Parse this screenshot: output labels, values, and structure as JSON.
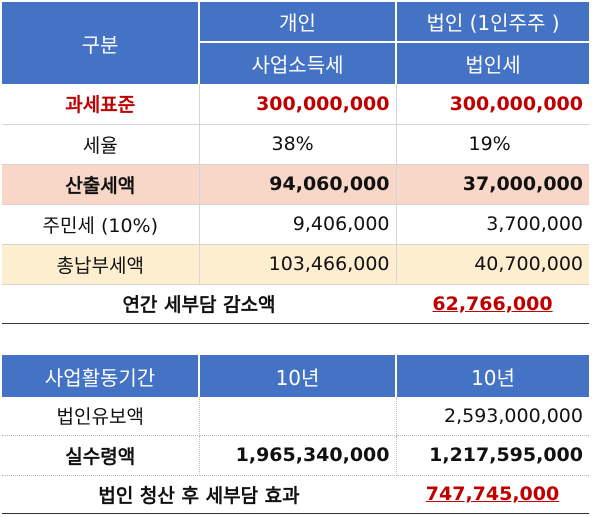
{
  "table1": {
    "header": {
      "category": "구분",
      "individual": "개인",
      "corporate": "법인 (1인주주 )",
      "individual_tax": "사업소득세",
      "corporate_tax": "법인세"
    },
    "rows": [
      {
        "label": "과세표준",
        "individual": "300,000,000",
        "corporate": "300,000,000"
      },
      {
        "label": "세율",
        "individual": "38%",
        "corporate": "19%"
      },
      {
        "label": "산출세액",
        "individual": "94,060,000",
        "corporate": "37,000,000"
      },
      {
        "label": "주민세 (10%)",
        "individual": "9,406,000",
        "corporate": "3,700,000"
      },
      {
        "label": "총납부세액",
        "individual": "103,466,000",
        "corporate": "40,700,000"
      }
    ],
    "summary": {
      "label": "연간 세부담 감소액",
      "value": "62,766,000"
    }
  },
  "table2": {
    "header": {
      "label": "사업활동기간",
      "individual": "10년",
      "corporate": "10년"
    },
    "rows": [
      {
        "label": "법인유보액",
        "individual": "",
        "corporate": "2,593,000,000"
      },
      {
        "label": "실수령액",
        "individual": "1,965,340,000",
        "corporate": "1,217,595,000"
      }
    ],
    "summary": {
      "label": "법인 청산 후 세부담 효과",
      "value": "747,745,000"
    }
  },
  "colors": {
    "header_blue": "#4472c4",
    "highlight_red": "#c00000",
    "pink_row": "#f8d7c8",
    "yellow_row": "#fdeed0"
  }
}
